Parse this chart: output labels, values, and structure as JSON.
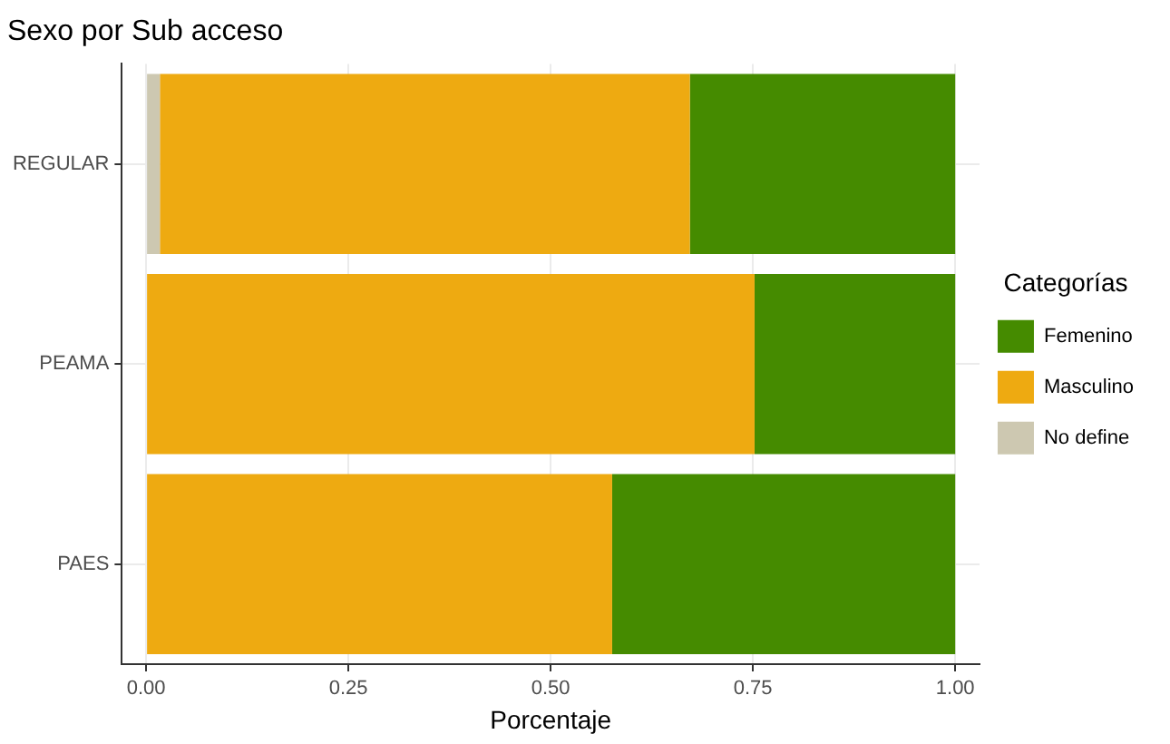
{
  "chart_data": {
    "type": "bar",
    "orientation": "horizontal",
    "stacked": true,
    "title": "Sexo por Sub acceso",
    "xlabel": "Porcentaje",
    "legend_title": "Categorías",
    "legend": "right",
    "grid": true,
    "categories": [
      "REGULAR",
      "PEAMA",
      "PAES"
    ],
    "series": [
      {
        "name": "No define",
        "color": "#cdc8b1",
        "values": [
          0.017,
          0,
          0
        ]
      },
      {
        "name": "Masculino",
        "color": "#eeaa11",
        "values": [
          0.655,
          0.752,
          0.576
        ]
      },
      {
        "name": "Femenino",
        "color": "#458b00",
        "values": [
          0.328,
          0.248,
          0.424
        ]
      }
    ],
    "xlim": [
      -0.03,
      1.03
    ],
    "xticks": [
      {
        "value": 0,
        "label": "0.00"
      },
      {
        "value": 0.25,
        "label": "0.25"
      },
      {
        "value": 0.5,
        "label": "0.50"
      },
      {
        "value": 0.75,
        "label": "0.75"
      },
      {
        "value": 1,
        "label": "1.00"
      }
    ]
  }
}
